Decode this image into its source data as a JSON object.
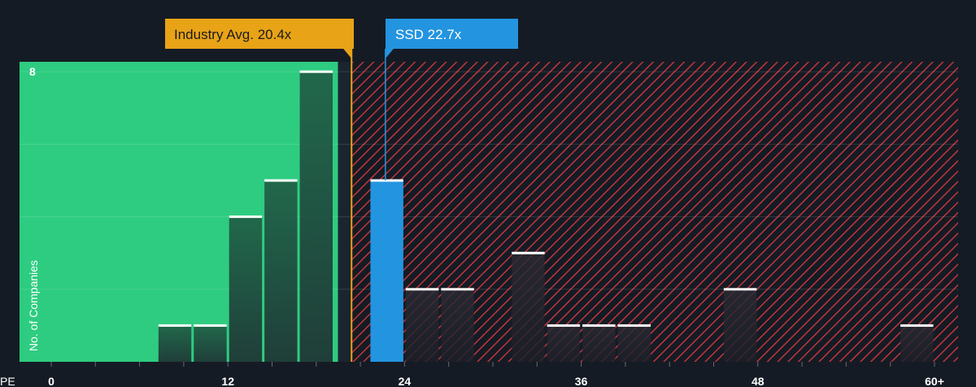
{
  "chart_data": {
    "type": "bar",
    "xlabel": "PE",
    "ylabel": "No. of Companies",
    "x_ticks": [
      "0",
      "12",
      "24",
      "36",
      "48",
      "60+"
    ],
    "x_tick_values": [
      0,
      12,
      24,
      36,
      48,
      60
    ],
    "xlim": [
      0,
      60.5
    ],
    "y_ticks": [
      8
    ],
    "ylim": [
      0,
      8.25
    ],
    "bin_width": 2.4,
    "bins": [
      {
        "start": 7.2,
        "value": 1
      },
      {
        "start": 9.6,
        "value": 1
      },
      {
        "start": 12.0,
        "value": 4
      },
      {
        "start": 14.4,
        "value": 5
      },
      {
        "start": 16.8,
        "value": 8
      },
      {
        "start": 21.6,
        "value": 5,
        "highlight": true
      },
      {
        "start": 24.0,
        "value": 2
      },
      {
        "start": 26.4,
        "value": 2
      },
      {
        "start": 31.2,
        "value": 3
      },
      {
        "start": 33.6,
        "value": 1
      },
      {
        "start": 36.0,
        "value": 1
      },
      {
        "start": 38.4,
        "value": 1
      },
      {
        "start": 45.6,
        "value": 2
      },
      {
        "start": 57.6,
        "value": 1
      }
    ],
    "fair_zone_end": 19.2,
    "industry_avg": {
      "label": "Industry Avg. 20.4x",
      "value": 20.4
    },
    "company": {
      "label": "SSD 22.7x",
      "value": 22.7
    },
    "colors": {
      "background": "#151b24",
      "fair_zone": "#2ecc80",
      "overvalued_hatch": "#c0353e",
      "industry_marker": "#e8a317",
      "company_bar": "#2394e0",
      "bar_cap": "#ffffff"
    },
    "grid": true
  }
}
